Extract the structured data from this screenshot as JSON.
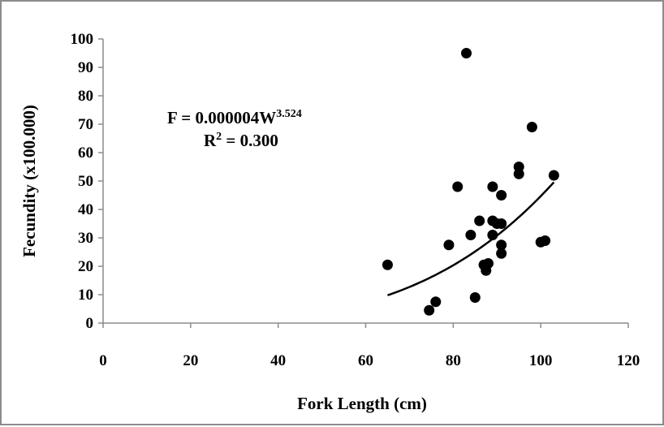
{
  "chart_data": {
    "type": "scatter",
    "title": "",
    "xlabel": "Fork Length (cm)",
    "ylabel": "Fecundity (x100.000)",
    "xlim": [
      0,
      120
    ],
    "ylim": [
      0,
      100
    ],
    "x_ticks": [
      0,
      20,
      40,
      60,
      80,
      100,
      120
    ],
    "y_ticks": [
      0,
      10,
      20,
      30,
      40,
      50,
      60,
      70,
      80,
      90,
      100
    ],
    "grid": false,
    "legend": "none",
    "marker_color": "#000000",
    "series": [
      {
        "points": [
          [
            65,
            20.5
          ],
          [
            74.5,
            4.5
          ],
          [
            76,
            7.5
          ],
          [
            79,
            27.5
          ],
          [
            81,
            48
          ],
          [
            83,
            95
          ],
          [
            84,
            31
          ],
          [
            85,
            9
          ],
          [
            86,
            36
          ],
          [
            87,
            20.5
          ],
          [
            87.5,
            18.5
          ],
          [
            88,
            21
          ],
          [
            89,
            31
          ],
          [
            89,
            48
          ],
          [
            89,
            36
          ],
          [
            90,
            35
          ],
          [
            91,
            45
          ],
          [
            91,
            35
          ],
          [
            91,
            27.5
          ],
          [
            91,
            24.5
          ],
          [
            95,
            55
          ],
          [
            95,
            52.5
          ],
          [
            98,
            69
          ],
          [
            100,
            28.5
          ],
          [
            101,
            29
          ],
          [
            103,
            52
          ]
        ]
      }
    ],
    "trendline": {
      "type": "power",
      "coefficient": 4e-06,
      "exponent": 3.524,
      "x_range": [
        65,
        103
      ],
      "color": "#000000"
    },
    "annotations": {
      "equation_main": "F = 0.000004W",
      "equation_exp": "3.524",
      "r2_prefix": "R",
      "r2_sup": "2",
      "r2_value": " = 0.300"
    }
  }
}
